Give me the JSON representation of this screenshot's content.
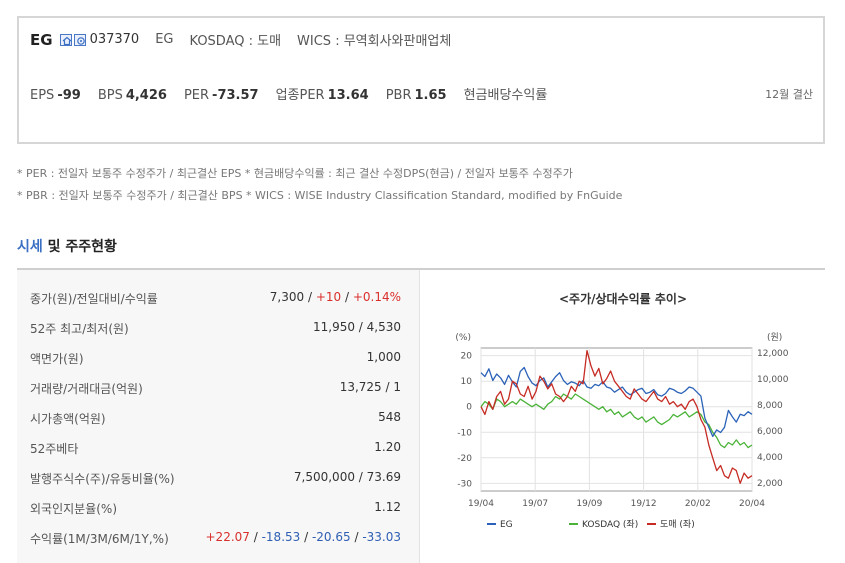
{
  "company": {
    "name": "EG",
    "code": "037370",
    "ticker": "EG",
    "market": "KOSDAQ : 도매",
    "wics": "WICS : 무역회사와판매업체",
    "icons": [
      "home-icon",
      "ir-icon"
    ]
  },
  "metrics": [
    {
      "label": "EPS",
      "value": "-99"
    },
    {
      "label": "BPS",
      "value": "4,426"
    },
    {
      "label": "PER",
      "value": "-73.57"
    },
    {
      "label": "업종PER",
      "value": "13.64"
    },
    {
      "label": "PBR",
      "value": "1.65"
    },
    {
      "label": "현금배당수익률",
      "value": ""
    }
  ],
  "settlement": "12월 결산",
  "notes": [
    "* PER : 전일자 보통주 수정주가 / 최근결산 EPS * 현금배당수익률 : 최근 결산 수정DPS(현금) / 전일자 보통주 수정주가",
    "* PBR : 전일자 보통주 수정주가 / 최근결산 BPS * WICS : WISE Industry Classification Standard, modified by FnGuide"
  ],
  "section": {
    "title_highlight": "시세",
    "title_rest": " 및 주주현황"
  },
  "table": [
    {
      "label": "종가(원)/전일대비/수익률",
      "parts": [
        {
          "t": "7,300 / ",
          "c": ""
        },
        {
          "t": "+10",
          "c": "red"
        },
        {
          "t": " / ",
          "c": ""
        },
        {
          "t": "+0.14%",
          "c": "red"
        }
      ]
    },
    {
      "label": "52주 최고/최저(원)",
      "parts": [
        {
          "t": "11,950 / 4,530",
          "c": ""
        }
      ]
    },
    {
      "label": "액면가(원)",
      "parts": [
        {
          "t": "1,000",
          "c": ""
        }
      ]
    },
    {
      "label": "거래량/거래대금(억원)",
      "parts": [
        {
          "t": "13,725 / 1",
          "c": ""
        }
      ]
    },
    {
      "label": "시가총액(억원)",
      "parts": [
        {
          "t": "548",
          "c": ""
        }
      ]
    },
    {
      "label": "52주베타",
      "parts": [
        {
          "t": "1.20",
          "c": ""
        }
      ]
    },
    {
      "label": "발행주식수(주)/유동비율(%)",
      "parts": [
        {
          "t": "7,500,000 / 73.69",
          "c": ""
        }
      ]
    },
    {
      "label": "외국인지분율(%)",
      "parts": [
        {
          "t": "1.12",
          "c": ""
        }
      ]
    },
    {
      "label": "수익률(1M/3M/6M/1Y,%)",
      "parts": [
        {
          "t": "+22.07",
          "c": "red"
        },
        {
          "t": " / ",
          "c": ""
        },
        {
          "t": "-18.53",
          "c": "blu"
        },
        {
          "t": " / ",
          "c": ""
        },
        {
          "t": "-20.65",
          "c": "blu"
        },
        {
          "t": " / ",
          "c": ""
        },
        {
          "t": "-33.03",
          "c": "blu"
        }
      ]
    }
  ],
  "chart_data": {
    "type": "line",
    "title": "<주가/상대수익률 추이>",
    "left_axis_unit": "(%)",
    "right_axis_unit": "(원)",
    "left_ylim": [
      -33,
      23
    ],
    "left_ticks": [
      "20",
      "10",
      "0",
      "-10",
      "-20",
      "-30"
    ],
    "left_tick_values": [
      20,
      10,
      0,
      -10,
      -20,
      -30
    ],
    "right_ylim": [
      1400,
      12400
    ],
    "right_ticks": [
      "12,000",
      "10,000",
      "8,000",
      "6,000",
      "4,000",
      "2,000"
    ],
    "right_tick_values": [
      12000,
      10000,
      8000,
      6000,
      4000,
      2000
    ],
    "x_ticks": [
      "19/04",
      "19/07",
      "19/09",
      "19/12",
      "20/02",
      "20/04"
    ],
    "x_tick_pos": [
      0,
      0.2,
      0.4,
      0.6,
      0.8,
      1.0
    ],
    "series": [
      {
        "name": "EG",
        "color": "#2c63b8",
        "axis": "right",
        "values": [
          10500,
          10200,
          10800,
          9900,
          10400,
          10100,
          9600,
          10300,
          9800,
          9400,
          10600,
          10900,
          10200,
          9700,
          9500,
          9900,
          10100,
          9400,
          9800,
          10200,
          10500,
          9900,
          9600,
          9800,
          9700,
          9500,
          9900,
          9400,
          9300,
          9600,
          9500,
          9800,
          9400,
          9300,
          9000,
          9200,
          9400,
          9000,
          8800,
          9000,
          9200,
          9300,
          8900,
          9000,
          9200,
          8800,
          8700,
          8900,
          9300,
          9200,
          9000,
          8900,
          9100,
          9400,
          9300,
          9000,
          8700,
          7000,
          6300,
          5600,
          6100,
          5900,
          6300,
          7600,
          7100,
          6700,
          7300,
          7200,
          7500,
          7300
        ]
      },
      {
        "name": "KOSDAQ (좌)",
        "color": "#4cb33a",
        "axis": "left",
        "values": [
          0,
          2,
          1,
          -1,
          3,
          2,
          0,
          1,
          2,
          1,
          3,
          2,
          1,
          0,
          1,
          0,
          -1,
          1,
          2,
          4,
          3,
          5,
          4,
          3,
          5,
          4,
          3,
          2,
          1,
          0,
          -1,
          0,
          -2,
          -1,
          -3,
          -2,
          -4,
          -3,
          -2,
          -4,
          -5,
          -4,
          -6,
          -5,
          -4,
          -6,
          -7,
          -6,
          -5,
          -3,
          -4,
          -3,
          -2,
          -4,
          -3,
          -2,
          -3,
          -6,
          -7,
          -10,
          -12,
          -15,
          -16,
          -14,
          -15,
          -13,
          -15,
          -14,
          -16,
          -15
        ]
      },
      {
        "name": "도매 (좌)",
        "color": "#c62c24",
        "axis": "left",
        "values": [
          0,
          -3,
          2,
          -1,
          4,
          6,
          1,
          3,
          10,
          9,
          5,
          4,
          8,
          3,
          6,
          12,
          10,
          7,
          9,
          5,
          4,
          2,
          4,
          8,
          6,
          10,
          9,
          22,
          16,
          12,
          15,
          9,
          11,
          14,
          10,
          8,
          6,
          4,
          3,
          7,
          5,
          3,
          2,
          4,
          6,
          3,
          2,
          4,
          1,
          2,
          0,
          1,
          -1,
          2,
          3,
          0,
          -5,
          -8,
          -15,
          -20,
          -25,
          -23,
          -27,
          -28,
          -24,
          -25,
          -30,
          -26,
          -28,
          -27
        ]
      }
    ]
  }
}
